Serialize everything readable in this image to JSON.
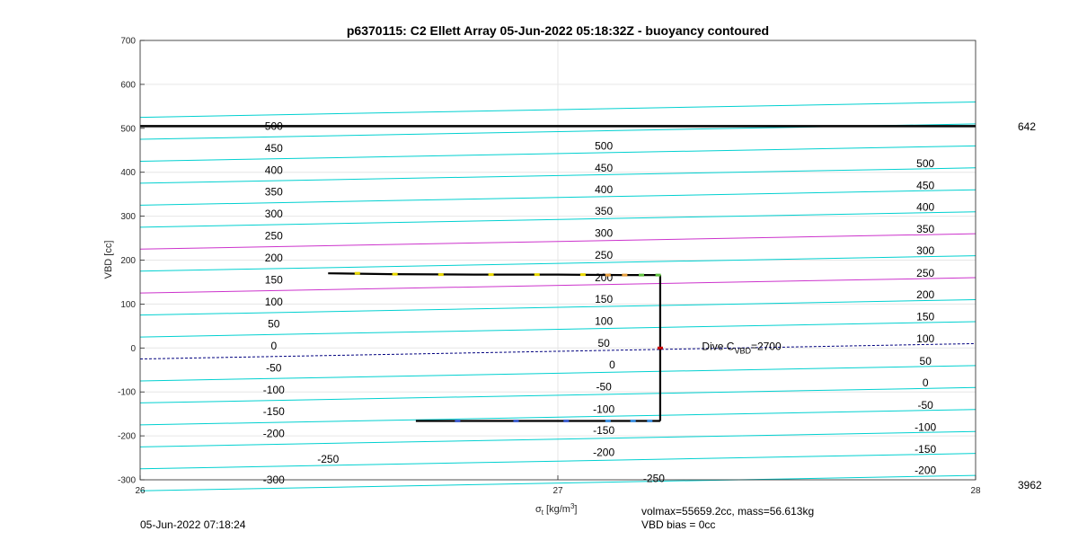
{
  "chart_data": {
    "type": "line",
    "title": "p6370115: C2 Ellett Array 05-Jun-2022 05:18:32Z - buoyancy contoured",
    "xlabel_main": "σ",
    "xlabel_sub": "t",
    "xlabel_unit": "[kg/m",
    "xlabel_sup": "3",
    "xlabel_close": "]",
    "ylabel": "VBD [cc]",
    "xlim": [
      26,
      28
    ],
    "ylim": [
      -300,
      700
    ],
    "x_ticks": [
      26,
      27,
      28
    ],
    "y_ticks": [
      -300,
      -200,
      -100,
      0,
      100,
      200,
      300,
      400,
      500,
      600,
      700
    ],
    "grid": true,
    "right_top_label": "642",
    "right_bottom_label": "3962",
    "reference_line": {
      "y": 505,
      "color": "#000000"
    },
    "contours": {
      "left_y": [
        -325,
        -275,
        -225,
        -175,
        -125,
        -75,
        -25,
        25,
        75,
        125,
        175,
        225,
        275,
        325,
        375,
        425,
        475,
        525
      ],
      "right_y": [
        -290,
        -240,
        -190,
        -140,
        -90,
        -40,
        10,
        60,
        110,
        160,
        210,
        260,
        310,
        360,
        410,
        460,
        510,
        560
      ],
      "highlight": {
        "-25": "#00007f",
        "125": "#cc33cc",
        "225": "#cc33cc"
      },
      "default_color": "#00d0d0"
    },
    "contour_labels": [
      {
        "text": "500",
        "x": 26.32,
        "y": 505
      },
      {
        "text": "450",
        "x": 26.32,
        "y": 455
      },
      {
        "text": "400",
        "x": 26.32,
        "y": 405
      },
      {
        "text": "350",
        "x": 26.32,
        "y": 355
      },
      {
        "text": "300",
        "x": 26.32,
        "y": 305
      },
      {
        "text": "250",
        "x": 26.32,
        "y": 255
      },
      {
        "text": "200",
        "x": 26.32,
        "y": 205
      },
      {
        "text": "150",
        "x": 26.32,
        "y": 155
      },
      {
        "text": "100",
        "x": 26.32,
        "y": 105
      },
      {
        "text": "50",
        "x": 26.32,
        "y": 55
      },
      {
        "text": "0",
        "x": 26.32,
        "y": 5
      },
      {
        "text": "-50",
        "x": 26.32,
        "y": -45
      },
      {
        "text": "-100",
        "x": 26.32,
        "y": -95
      },
      {
        "text": "-150",
        "x": 26.32,
        "y": -145
      },
      {
        "text": "-200",
        "x": 26.32,
        "y": -195
      },
      {
        "text": "-250",
        "x": 26.45,
        "y": -253
      },
      {
        "text": "-300",
        "x": 26.32,
        "y": -300
      },
      {
        "text": "500",
        "x": 27.11,
        "y": 460
      },
      {
        "text": "450",
        "x": 27.11,
        "y": 410
      },
      {
        "text": "400",
        "x": 27.11,
        "y": 361
      },
      {
        "text": "350",
        "x": 27.11,
        "y": 311
      },
      {
        "text": "300",
        "x": 27.11,
        "y": 261
      },
      {
        "text": "250",
        "x": 27.11,
        "y": 211
      },
      {
        "text": "200",
        "x": 27.11,
        "y": 160
      },
      {
        "text": "150",
        "x": 27.11,
        "y": 111
      },
      {
        "text": "100",
        "x": 27.11,
        "y": 61
      },
      {
        "text": "50",
        "x": 27.11,
        "y": 11
      },
      {
        "text": "0",
        "x": 27.13,
        "y": -38
      },
      {
        "text": "-50",
        "x": 27.11,
        "y": -88
      },
      {
        "text": "-100",
        "x": 27.11,
        "y": -139
      },
      {
        "text": "-150",
        "x": 27.11,
        "y": -188
      },
      {
        "text": "-200",
        "x": 27.11,
        "y": -238
      },
      {
        "text": "-250",
        "x": 27.23,
        "y": -297
      },
      {
        "text": "500",
        "x": 27.88,
        "y": 420
      },
      {
        "text": "450",
        "x": 27.88,
        "y": 370
      },
      {
        "text": "400",
        "x": 27.88,
        "y": 321
      },
      {
        "text": "350",
        "x": 27.88,
        "y": 271
      },
      {
        "text": "300",
        "x": 27.88,
        "y": 221
      },
      {
        "text": "250",
        "x": 27.88,
        "y": 170
      },
      {
        "text": "200",
        "x": 27.88,
        "y": 121
      },
      {
        "text": "150",
        "x": 27.88,
        "y": 71
      },
      {
        "text": "100",
        "x": 27.88,
        "y": 21
      },
      {
        "text": "50",
        "x": 27.88,
        "y": -30
      },
      {
        "text": "0",
        "x": 27.88,
        "y": -79
      },
      {
        "text": "-50",
        "x": 27.88,
        "y": -130
      },
      {
        "text": "-100",
        "x": 27.88,
        "y": -180
      },
      {
        "text": "-150",
        "x": 27.88,
        "y": -230
      },
      {
        "text": "-200",
        "x": 27.88,
        "y": -279
      }
    ],
    "series": [
      {
        "x": [
          26.45,
          26.6,
          26.8,
          27.0,
          27.15,
          27.245
        ],
        "y": [
          170,
          168,
          167,
          167,
          166,
          166
        ]
      },
      {
        "x": [
          27.245,
          27.245
        ],
        "y": [
          166,
          -166
        ]
      },
      {
        "x": [
          26.66,
          26.8,
          27.0,
          27.15,
          27.245
        ],
        "y": [
          -166,
          -166,
          -166,
          -166,
          -166
        ]
      }
    ],
    "marker_points": [
      {
        "x": 26.52,
        "y": 170,
        "color": "#e8d800"
      },
      {
        "x": 26.61,
        "y": 168,
        "color": "#e8d800"
      },
      {
        "x": 26.72,
        "y": 167,
        "color": "#e8d800"
      },
      {
        "x": 26.84,
        "y": 167,
        "color": "#e8d800"
      },
      {
        "x": 26.95,
        "y": 167,
        "color": "#e8d800"
      },
      {
        "x": 27.06,
        "y": 167,
        "color": "#e8d800"
      },
      {
        "x": 27.12,
        "y": 166,
        "color": "#e8a040"
      },
      {
        "x": 27.16,
        "y": 166,
        "color": "#e8a040"
      },
      {
        "x": 27.2,
        "y": 166,
        "color": "#60c040"
      },
      {
        "x": 27.24,
        "y": 166,
        "color": "#60c040"
      },
      {
        "x": 26.76,
        "y": -166,
        "color": "#4060d0"
      },
      {
        "x": 26.9,
        "y": -166,
        "color": "#4060d0"
      },
      {
        "x": 27.02,
        "y": -166,
        "color": "#4060d0"
      },
      {
        "x": 27.12,
        "y": -166,
        "color": "#4090e0"
      },
      {
        "x": 27.18,
        "y": -166,
        "color": "#4090e0"
      },
      {
        "x": 27.22,
        "y": -166,
        "color": "#4090e0"
      },
      {
        "x": 27.245,
        "y": 0,
        "color": "#cc0000"
      }
    ],
    "annotation": {
      "text": "Dive C",
      "sub": "VBD",
      "rest": "=2700",
      "x": 27.345,
      "y": 0
    },
    "footer": {
      "date": "05-Jun-2022 07:18:24",
      "volmax": "volmax=55659.2cc, mass=56.613kg",
      "bias": "VBD bias = 0cc"
    }
  }
}
